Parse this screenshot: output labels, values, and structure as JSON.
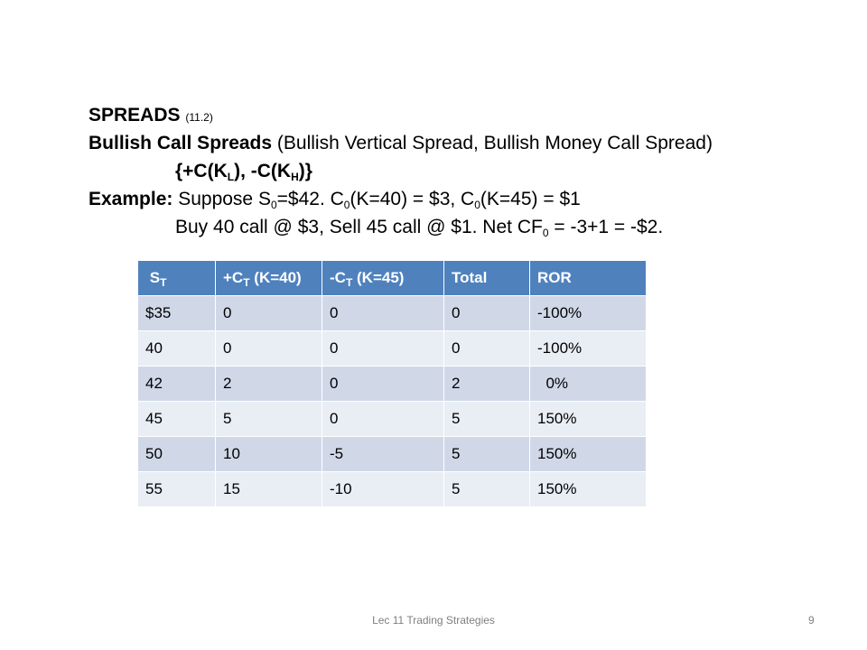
{
  "slide": {
    "heading": "SPREADS",
    "heading_ref": "(11.2)",
    "subtitle_bold": "Bullish Call Spreads",
    "subtitle_rest": " (Bullish Vertical Spread, Bullish Money Call Spread)",
    "position": {
      "p1": "{+C(K",
      "s1": "L",
      "p2": "), -C(K",
      "s2": "H",
      "p3": ")}"
    },
    "example": {
      "label": "Example:",
      "t1": " Suppose S",
      "s1": "0",
      "t2": "=$42. C",
      "s2": "0",
      "t3": "(K=40) = $3, C",
      "s3": "0",
      "t4": "(K=45) = $1"
    },
    "trade": {
      "t1": "Buy 40 call @ $3, Sell 45 call @ $1.  Net CF",
      "s1": "0",
      "t2": " = -3+1 = -$2."
    }
  },
  "table": {
    "headers": {
      "h0": {
        "pre": "S",
        "sub": "T",
        "post": ""
      },
      "h1": {
        "pre": "+C",
        "sub": "T",
        "post": " (K=40)"
      },
      "h2": {
        "pre": "-C",
        "sub": "T",
        "post": " (K=45)"
      },
      "h3": {
        "pre": "Total",
        "sub": "",
        "post": ""
      },
      "h4": {
        "pre": "ROR",
        "sub": "",
        "post": ""
      }
    },
    "rows": [
      [
        "$35",
        "0",
        "0",
        "0",
        "-100%"
      ],
      [
        "40",
        "0",
        "0",
        "0",
        "-100%"
      ],
      [
        "42",
        "2",
        "0",
        "2",
        "  0%"
      ],
      [
        "45",
        "5",
        "0",
        "5",
        "150%"
      ],
      [
        "50",
        "10",
        "-5",
        "5",
        "150%"
      ],
      [
        "55",
        "15",
        "-10",
        "5",
        "150%"
      ]
    ]
  },
  "footer": {
    "title": "Lec 11 Trading Strategies",
    "page": "9"
  }
}
